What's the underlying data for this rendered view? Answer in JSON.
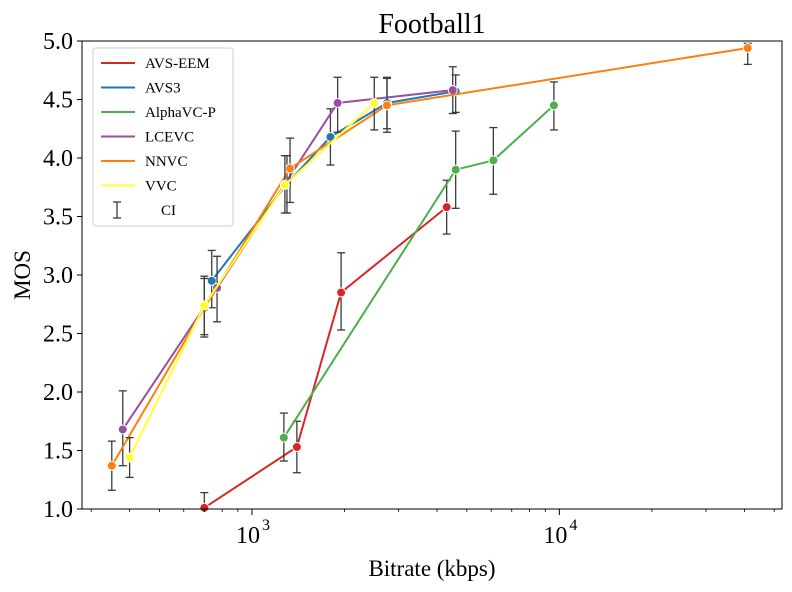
{
  "chart_data": {
    "type": "line",
    "title": "Football1",
    "xlabel": "Bitrate (kbps)",
    "ylabel": "MOS",
    "x_scale": "log",
    "xlim": [
      280,
      53000
    ],
    "ylim": [
      1.0,
      5.0
    ],
    "yticks": [
      1.0,
      1.5,
      2.0,
      2.5,
      3.0,
      3.5,
      4.0,
      4.5,
      5.0
    ],
    "ytick_labels": [
      "1.0",
      "1.5",
      "2.0",
      "2.5",
      "3.0",
      "3.5",
      "4.0",
      "4.5",
      "5.0"
    ],
    "xticks": [
      {
        "value": 1000,
        "base": "10",
        "exp": "3"
      },
      {
        "value": 10000,
        "base": "10",
        "exp": "4"
      }
    ],
    "grid": false,
    "legend_position": "top-left",
    "ci_label": "CI",
    "series": [
      {
        "name": "AVS-EEM",
        "color": "#d62728",
        "x": [
          700,
          1400,
          1950,
          4300
        ],
        "y": [
          1.01,
          1.53,
          2.85,
          3.58
        ],
        "ci": [
          [
            1.01,
            1.14
          ],
          [
            1.31,
            1.75
          ],
          [
            2.53,
            3.19
          ],
          [
            3.35,
            3.81
          ]
        ]
      },
      {
        "name": "AVS3",
        "color": "#1f77b4",
        "x": [
          740,
          1300,
          1800,
          2750,
          4600
        ],
        "y": [
          2.95,
          3.78,
          4.18,
          4.47,
          4.57
        ],
        "ci": [
          [
            2.72,
            3.21
          ],
          [
            3.53,
            4.02
          ],
          [
            3.94,
            4.42
          ],
          [
            4.25,
            4.68
          ],
          [
            4.39,
            4.71
          ]
        ]
      },
      {
        "name": "AlphaVC-P",
        "color": "#4daf4a",
        "x": [
          1270,
          4600,
          6100,
          9600
        ],
        "y": [
          1.61,
          3.9,
          3.98,
          4.45
        ],
        "ci": [
          [
            1.41,
            1.82
          ],
          [
            3.57,
            4.23
          ],
          [
            3.69,
            4.26
          ],
          [
            4.24,
            4.65
          ]
        ]
      },
      {
        "name": "LCEVC",
        "color": "#984ea3",
        "x": [
          380,
          770,
          1900,
          4500
        ],
        "y": [
          1.68,
          2.89,
          4.47,
          4.58
        ],
        "ci": [
          [
            1.37,
            2.01
          ],
          [
            2.6,
            3.16
          ],
          [
            4.22,
            4.69
          ],
          [
            4.38,
            4.78
          ]
        ]
      },
      {
        "name": "NNVC",
        "color": "#ff7f0e",
        "x": [
          350,
          700,
          1330,
          2750,
          41000
        ],
        "y": [
          1.37,
          2.72,
          3.91,
          4.45,
          4.94
        ],
        "ci": [
          [
            1.16,
            1.58
          ],
          [
            2.47,
            2.97
          ],
          [
            3.62,
            4.17
          ],
          [
            4.22,
            4.69
          ],
          [
            4.8,
            4.98
          ]
        ]
      },
      {
        "name": "VVC",
        "color": "#ffff33",
        "x": [
          400,
          700,
          1280,
          2500
        ],
        "y": [
          1.44,
          2.74,
          3.77,
          4.47
        ],
        "ci": [
          [
            1.27,
            1.61
          ],
          [
            2.49,
            2.99
          ],
          [
            3.53,
            4.02
          ],
          [
            4.24,
            4.69
          ]
        ]
      }
    ]
  }
}
